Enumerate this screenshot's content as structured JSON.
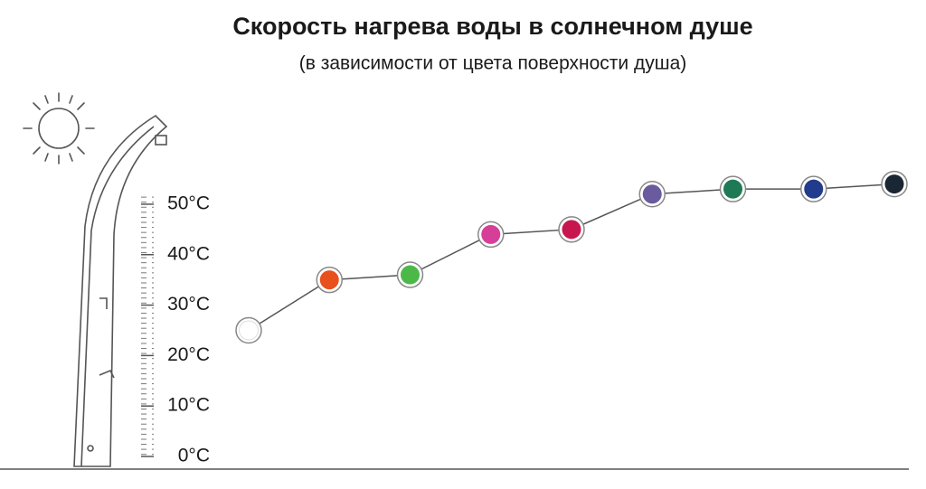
{
  "chart_data": {
    "type": "line",
    "title": "Скорость нагрева воды в солнечном душе",
    "subtitle": "(в зависимости от цвета поверхности душа)",
    "categories": [
      null,
      null,
      null,
      null,
      null,
      null,
      null,
      null,
      null
    ],
    "values": [
      25,
      35,
      36,
      44,
      45,
      52,
      53,
      53,
      54
    ],
    "colors": [
      "#ffffff",
      "#e8501e",
      "#4cb848",
      "#d63f97",
      "#c8174f",
      "#6a5a9e",
      "#1d7a55",
      "#233b8c",
      "#1a2633"
    ],
    "line_color": "#555555",
    "ylim": [
      0,
      55
    ],
    "yticks": [
      {
        "value": 0,
        "label": "0°C"
      },
      {
        "value": 10,
        "label": "10°C"
      },
      {
        "value": 20,
        "label": "20°C"
      },
      {
        "value": 30,
        "label": "30°C"
      },
      {
        "value": 40,
        "label": "40°C"
      },
      {
        "value": 50,
        "label": "50°C"
      }
    ]
  }
}
